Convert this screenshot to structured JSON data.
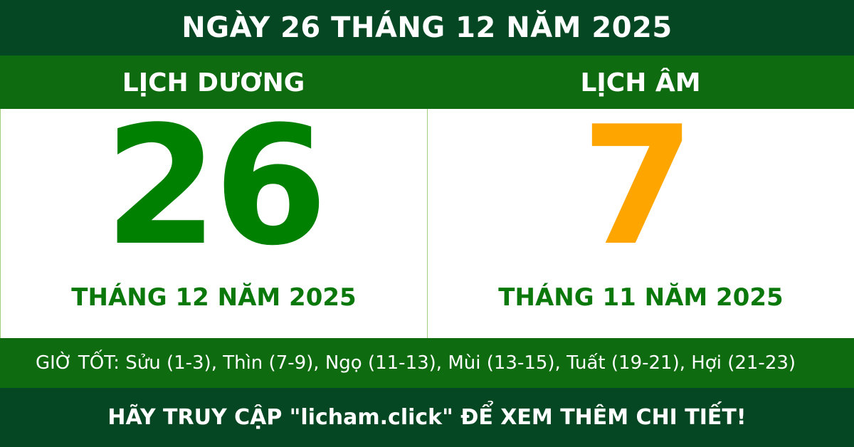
{
  "header": {
    "title": "NGÀY 26 THÁNG 12 NĂM 2025"
  },
  "solar": {
    "label": "LỊCH DƯƠNG",
    "day": "26",
    "month_year": "THÁNG 12 NĂM 2025",
    "color": "#008000"
  },
  "lunar": {
    "label": "LỊCH ÂM",
    "day": "7",
    "month_year": "THÁNG 11 NĂM 2025",
    "color": "#FFA500"
  },
  "good_hours": "GIỜ TỐT: Sửu (1-3), Thìn (7-9), Ngọ (11-13), Mùi (13-15), Tuất (19-21), Hợi (21-23)",
  "footer": {
    "cta": "HÃY TRUY CẬP \"licham.click\" ĐỂ XEM THÊM CHI TIẾT!"
  }
}
